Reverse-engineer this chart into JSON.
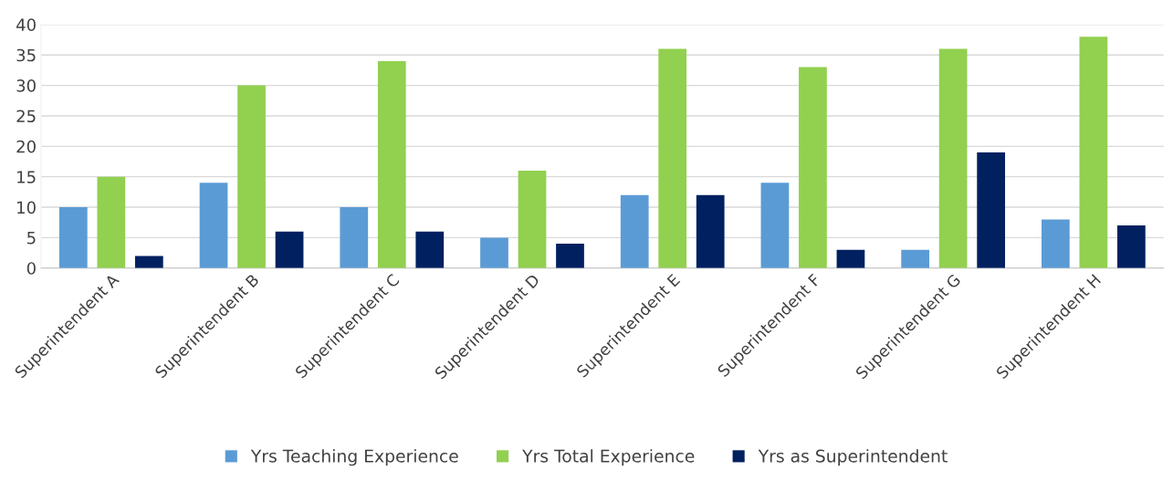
{
  "chart_data": {
    "type": "bar",
    "categories": [
      "Superintendent A",
      "Superintendent B",
      "Superintendent C",
      "Superintendent D",
      "Superintendent E",
      "Superintendent F",
      "Superintendent G",
      "Superintendent H"
    ],
    "series": [
      {
        "name": "Yrs Teaching Experience",
        "color": "#5b9bd5",
        "values": [
          10,
          14,
          10,
          5,
          12,
          14,
          3,
          8
        ]
      },
      {
        "name": "Yrs Total Experience",
        "color": "#92d050",
        "values": [
          15,
          30,
          34,
          16,
          36,
          33,
          36,
          38
        ]
      },
      {
        "name": "Yrs as Superintendent",
        "color": "#002060",
        "values": [
          2,
          6,
          6,
          4,
          12,
          3,
          19,
          7
        ]
      }
    ],
    "ylim": [
      0,
      40
    ],
    "yticks": [
      0,
      5,
      10,
      15,
      20,
      25,
      30,
      35,
      40
    ],
    "grid": "y",
    "legend": "bottom"
  }
}
